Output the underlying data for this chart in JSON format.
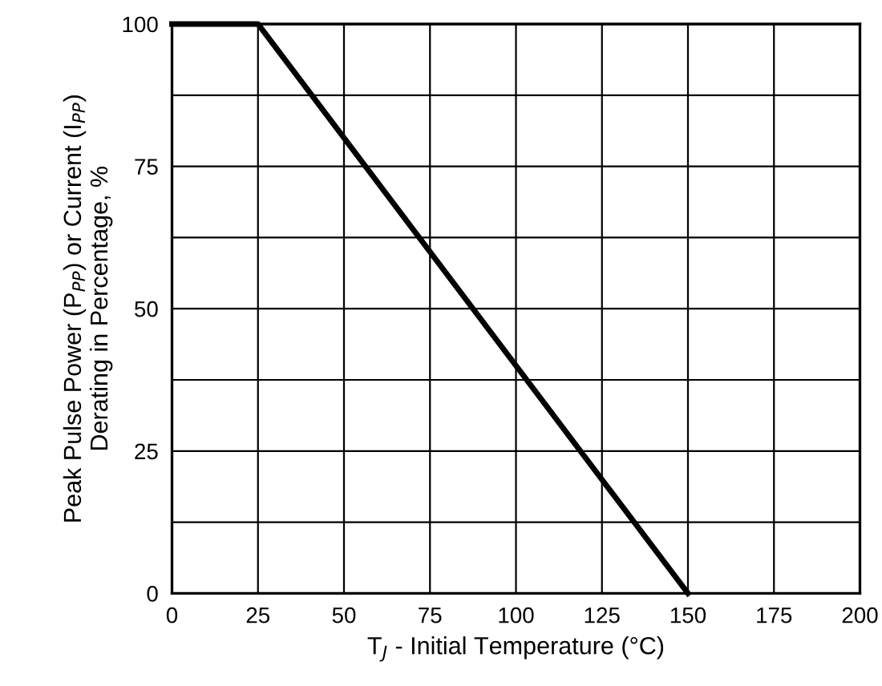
{
  "chart_data": {
    "type": "line",
    "xlabel": "T$_{J}$ - Initial Temperature (°C)",
    "ylabel": "Peak Pulse Power (P$_{PP}$) or Current (I$_{PP}$)\nDerating in Percentage, %",
    "x": [
      0,
      25,
      150
    ],
    "series": [
      {
        "color": "#000000",
        "values": [
          100,
          100,
          0
        ]
      }
    ],
    "xlim": [
      0,
      200
    ],
    "xticks": [
      0,
      25,
      50,
      75,
      100,
      125,
      150,
      175,
      200
    ],
    "ylim": [
      0,
      100
    ],
    "yticks": [
      0,
      {
        "value": 12.5,
        "label": null
      },
      25,
      {
        "value": 37.5,
        "label": null
      },
      50,
      {
        "value": 62.5,
        "label": null
      },
      75,
      {
        "value": 87.5,
        "label": null
      },
      100
    ],
    "grid": true,
    "marker": "none",
    "line_style": "solid"
  }
}
